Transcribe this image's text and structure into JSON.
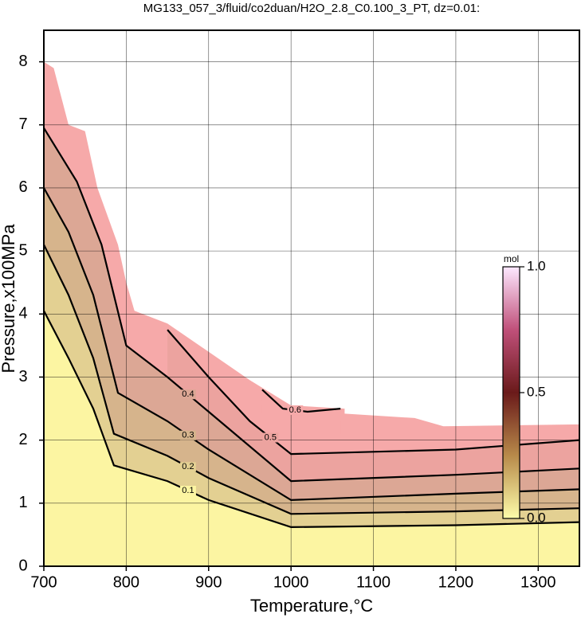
{
  "chart_data": {
    "type": "contour",
    "title": "MG133_057_3/fluid/co2duan/H2O_2.8_C0.100_3_PT, dz=0.01:",
    "x_label": "Temperature,°C",
    "y_label": "Pressure,x100MPa",
    "xlim": [
      700,
      1350
    ],
    "ylim": [
      0,
      8.5
    ],
    "xticks": [
      700,
      800,
      900,
      1000,
      1100,
      1200,
      1300
    ],
    "yticks": [
      0,
      1,
      2,
      3,
      4,
      5,
      6,
      7,
      8
    ],
    "grid": true,
    "region": {
      "color": "#f6a9a9",
      "x": [
        700,
        712,
        730,
        750,
        765,
        790,
        800,
        810,
        850,
        900,
        950,
        1000,
        1065,
        1065,
        1150,
        1185,
        1350
      ],
      "y": [
        8.0,
        7.9,
        7.0,
        6.9,
        6.0,
        5.1,
        4.5,
        4.05,
        3.85,
        3.4,
        2.95,
        2.55,
        2.5,
        2.42,
        2.35,
        2.22,
        2.25
      ]
    },
    "series": [
      {
        "name": "0.6",
        "color": "#000000",
        "fill": "#f6a9a9",
        "x": [
          965,
          990,
          1020,
          1060
        ],
        "y": [
          2.8,
          2.5,
          2.45,
          2.5
        ]
      },
      {
        "name": "0.5",
        "color": "#000000",
        "fill": "#eca39f",
        "x": [
          850,
          900,
          950,
          1000,
          1200,
          1350
        ],
        "y": [
          3.75,
          3.0,
          2.3,
          1.78,
          1.85,
          2.0
        ]
      },
      {
        "name": "0.4",
        "color": "#000000",
        "fill": "#dca795",
        "x": [
          700,
          740,
          770,
          800,
          850,
          900,
          1000,
          1200,
          1350
        ],
        "y": [
          6.95,
          6.1,
          5.1,
          3.5,
          3.0,
          2.45,
          1.35,
          1.45,
          1.55
        ]
      },
      {
        "name": "0.3",
        "color": "#000000",
        "fill": "#d6b48c",
        "x": [
          700,
          730,
          760,
          790,
          850,
          900,
          1000,
          1200,
          1350
        ],
        "y": [
          6.0,
          5.3,
          4.3,
          2.75,
          2.3,
          1.85,
          1.05,
          1.15,
          1.22
        ]
      },
      {
        "name": "0.2",
        "color": "#000000",
        "fill": "#e3d092",
        "x": [
          700,
          730,
          760,
          785,
          850,
          900,
          1000,
          1200,
          1350
        ],
        "y": [
          5.1,
          4.3,
          3.3,
          2.1,
          1.75,
          1.4,
          0.83,
          0.87,
          0.92
        ]
      },
      {
        "name": "0.1",
        "color": "#000000",
        "fill": "#fcf5a2",
        "x": [
          700,
          730,
          760,
          785,
          850,
          900,
          1000,
          1200,
          1350
        ],
        "y": [
          4.05,
          3.3,
          2.5,
          1.6,
          1.35,
          1.05,
          0.62,
          0.65,
          0.7
        ]
      }
    ],
    "colorbar": {
      "label": "mol",
      "clim": [
        0,
        1
      ],
      "colors": [
        "#fdfcaa",
        "#b88a4a",
        "#6a1a1a",
        "#c0507a",
        "#fde8ff"
      ],
      "ticks": [
        {
          "value": 0,
          "label": "0.0"
        },
        {
          "value": 0.5,
          "label": "0.5"
        },
        {
          "value": 1,
          "label": "1.0"
        }
      ]
    }
  }
}
